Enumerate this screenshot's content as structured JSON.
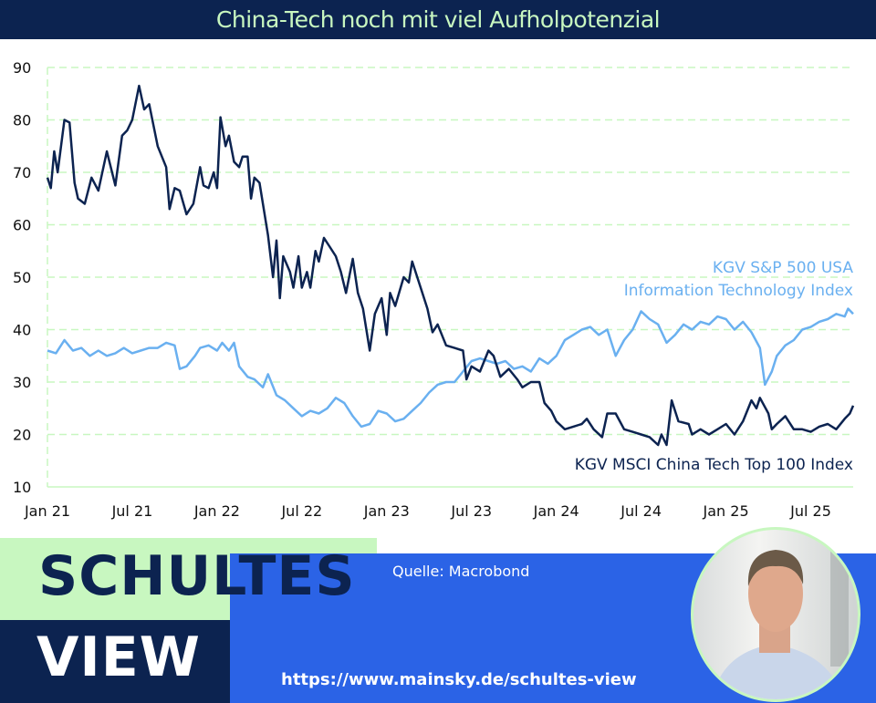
{
  "title": "China-Tech noch mit viel Aufholpotenzial",
  "footer": {
    "brand_line1": "SCHULTES",
    "brand_line2": "VIEW",
    "source": "Quelle: Macrobond",
    "url": "https://www.mainsky.de/schultes-view"
  },
  "colors": {
    "navy": "#0c2350",
    "light_blue": "#6ab0f0",
    "green": "#c8f7c0",
    "blue": "#2b63e6"
  },
  "chart_data": {
    "type": "line",
    "title": "China-Tech noch mit viel Aufholpotenzial",
    "xlabel": "",
    "ylabel": "",
    "ylim": [
      10,
      90
    ],
    "xlim": [
      2021.0,
      2025.75
    ],
    "yticks": [
      10,
      20,
      30,
      40,
      50,
      60,
      70,
      80,
      90
    ],
    "xticks": [
      {
        "x": 2021.0,
        "label": "Jan 21"
      },
      {
        "x": 2021.5,
        "label": "Jul 21"
      },
      {
        "x": 2022.0,
        "label": "Jan 22"
      },
      {
        "x": 2022.5,
        "label": "Jul 22"
      },
      {
        "x": 2023.0,
        "label": "Jan 23"
      },
      {
        "x": 2023.5,
        "label": "Jul 23"
      },
      {
        "x": 2024.0,
        "label": "Jan 24"
      },
      {
        "x": 2024.5,
        "label": "Jul 24"
      },
      {
        "x": 2025.0,
        "label": "Jan 25"
      },
      {
        "x": 2025.5,
        "label": "Jul 25"
      }
    ],
    "grid": true,
    "series": [
      {
        "name": "KGV S&P 500 USA Information Technology Index",
        "label_lines": [
          "KGV S&P 500 USA",
          "Information Technology Index"
        ],
        "color": "#6ab0f0",
        "points": [
          [
            2021.0,
            36
          ],
          [
            2021.05,
            35.5
          ],
          [
            2021.1,
            38
          ],
          [
            2021.15,
            36
          ],
          [
            2021.2,
            36.5
          ],
          [
            2021.25,
            35
          ],
          [
            2021.3,
            36
          ],
          [
            2021.35,
            35
          ],
          [
            2021.4,
            35.5
          ],
          [
            2021.45,
            36.5
          ],
          [
            2021.5,
            35.5
          ],
          [
            2021.55,
            36
          ],
          [
            2021.6,
            36.5
          ],
          [
            2021.65,
            36.5
          ],
          [
            2021.7,
            37.5
          ],
          [
            2021.75,
            37
          ],
          [
            2021.78,
            32.5
          ],
          [
            2021.82,
            33
          ],
          [
            2021.87,
            35
          ],
          [
            2021.9,
            36.5
          ],
          [
            2021.95,
            37
          ],
          [
            2022.0,
            36
          ],
          [
            2022.03,
            37.5
          ],
          [
            2022.07,
            36
          ],
          [
            2022.1,
            37.5
          ],
          [
            2022.13,
            33
          ],
          [
            2022.18,
            31
          ],
          [
            2022.22,
            30.5
          ],
          [
            2022.27,
            29
          ],
          [
            2022.3,
            31.5
          ],
          [
            2022.35,
            27.5
          ],
          [
            2022.4,
            26.5
          ],
          [
            2022.45,
            25
          ],
          [
            2022.5,
            23.5
          ],
          [
            2022.55,
            24.5
          ],
          [
            2022.6,
            24
          ],
          [
            2022.65,
            25
          ],
          [
            2022.7,
            27
          ],
          [
            2022.75,
            26
          ],
          [
            2022.8,
            23.5
          ],
          [
            2022.85,
            21.5
          ],
          [
            2022.9,
            22
          ],
          [
            2022.95,
            24.5
          ],
          [
            2023.0,
            24
          ],
          [
            2023.05,
            22.5
          ],
          [
            2023.1,
            23
          ],
          [
            2023.15,
            24.5
          ],
          [
            2023.2,
            26
          ],
          [
            2023.25,
            28
          ],
          [
            2023.3,
            29.5
          ],
          [
            2023.35,
            30
          ],
          [
            2023.4,
            30
          ],
          [
            2023.45,
            32
          ],
          [
            2023.5,
            34
          ],
          [
            2023.55,
            34.5
          ],
          [
            2023.6,
            34
          ],
          [
            2023.65,
            33.5
          ],
          [
            2023.7,
            34
          ],
          [
            2023.75,
            32.5
          ],
          [
            2023.8,
            33
          ],
          [
            2023.85,
            32
          ],
          [
            2023.9,
            34.5
          ],
          [
            2023.95,
            33.5
          ],
          [
            2024.0,
            35
          ],
          [
            2024.05,
            38
          ],
          [
            2024.1,
            39
          ],
          [
            2024.15,
            40
          ],
          [
            2024.2,
            40.5
          ],
          [
            2024.25,
            39
          ],
          [
            2024.3,
            40
          ],
          [
            2024.35,
            35
          ],
          [
            2024.4,
            38
          ],
          [
            2024.45,
            40
          ],
          [
            2024.5,
            43.5
          ],
          [
            2024.55,
            42
          ],
          [
            2024.6,
            41
          ],
          [
            2024.65,
            37.5
          ],
          [
            2024.7,
            39
          ],
          [
            2024.75,
            41
          ],
          [
            2024.8,
            40
          ],
          [
            2024.85,
            41.5
          ],
          [
            2024.9,
            41
          ],
          [
            2024.95,
            42.5
          ],
          [
            2025.0,
            42
          ],
          [
            2025.05,
            40
          ],
          [
            2025.1,
            41.5
          ],
          [
            2025.15,
            39.5
          ],
          [
            2025.2,
            36.5
          ],
          [
            2025.23,
            29.5
          ],
          [
            2025.27,
            32
          ],
          [
            2025.3,
            35
          ],
          [
            2025.35,
            37
          ],
          [
            2025.4,
            38
          ],
          [
            2025.45,
            40
          ],
          [
            2025.5,
            40.5
          ],
          [
            2025.55,
            41.5
          ],
          [
            2025.6,
            42
          ],
          [
            2025.65,
            43
          ],
          [
            2025.7,
            42.5
          ],
          [
            2025.72,
            44
          ],
          [
            2025.75,
            43
          ]
        ]
      },
      {
        "name": "KGV MSCI China Tech Top 100 Index",
        "label_lines": [
          "KGV MSCI China Tech Top 100 Index"
        ],
        "color": "#0c2350",
        "points": [
          [
            2021.0,
            69
          ],
          [
            2021.02,
            67
          ],
          [
            2021.04,
            74
          ],
          [
            2021.06,
            70
          ],
          [
            2021.1,
            80
          ],
          [
            2021.13,
            79.5
          ],
          [
            2021.16,
            68
          ],
          [
            2021.18,
            65
          ],
          [
            2021.22,
            64
          ],
          [
            2021.26,
            69
          ],
          [
            2021.3,
            66.5
          ],
          [
            2021.35,
            74
          ],
          [
            2021.4,
            67.5
          ],
          [
            2021.44,
            77
          ],
          [
            2021.47,
            78
          ],
          [
            2021.5,
            80
          ],
          [
            2021.54,
            86.5
          ],
          [
            2021.57,
            82
          ],
          [
            2021.6,
            83
          ],
          [
            2021.65,
            75
          ],
          [
            2021.7,
            71
          ],
          [
            2021.72,
            63
          ],
          [
            2021.75,
            67
          ],
          [
            2021.78,
            66.5
          ],
          [
            2021.82,
            62
          ],
          [
            2021.86,
            64
          ],
          [
            2021.9,
            71
          ],
          [
            2021.92,
            67.5
          ],
          [
            2021.95,
            67
          ],
          [
            2021.98,
            70
          ],
          [
            2022.0,
            67
          ],
          [
            2022.02,
            80.5
          ],
          [
            2022.05,
            75
          ],
          [
            2022.07,
            77
          ],
          [
            2022.1,
            72
          ],
          [
            2022.13,
            71
          ],
          [
            2022.15,
            73
          ],
          [
            2022.18,
            73
          ],
          [
            2022.2,
            65
          ],
          [
            2022.22,
            69
          ],
          [
            2022.25,
            68
          ],
          [
            2022.3,
            58
          ],
          [
            2022.33,
            50
          ],
          [
            2022.35,
            57
          ],
          [
            2022.37,
            46
          ],
          [
            2022.39,
            54
          ],
          [
            2022.43,
            51
          ],
          [
            2022.45,
            48
          ],
          [
            2022.48,
            54
          ],
          [
            2022.5,
            48
          ],
          [
            2022.53,
            51
          ],
          [
            2022.55,
            48
          ],
          [
            2022.58,
            55
          ],
          [
            2022.6,
            53
          ],
          [
            2022.63,
            57.5
          ],
          [
            2022.66,
            56
          ],
          [
            2022.7,
            54
          ],
          [
            2022.73,
            51
          ],
          [
            2022.76,
            47
          ],
          [
            2022.8,
            53.5
          ],
          [
            2022.83,
            47
          ],
          [
            2022.86,
            44
          ],
          [
            2022.9,
            36
          ],
          [
            2022.93,
            43
          ],
          [
            2022.97,
            46
          ],
          [
            2023.0,
            39
          ],
          [
            2023.02,
            47
          ],
          [
            2023.05,
            44.5
          ],
          [
            2023.1,
            50
          ],
          [
            2023.13,
            49
          ],
          [
            2023.15,
            53
          ],
          [
            2023.2,
            48
          ],
          [
            2023.24,
            44
          ],
          [
            2023.27,
            39.5
          ],
          [
            2023.3,
            41
          ],
          [
            2023.35,
            37
          ],
          [
            2023.4,
            36.5
          ],
          [
            2023.45,
            36
          ],
          [
            2023.47,
            30.5
          ],
          [
            2023.5,
            33
          ],
          [
            2023.55,
            32
          ],
          [
            2023.6,
            36
          ],
          [
            2023.63,
            35
          ],
          [
            2023.67,
            31
          ],
          [
            2023.72,
            32.5
          ],
          [
            2023.77,
            30.5
          ],
          [
            2023.8,
            29
          ],
          [
            2023.85,
            30
          ],
          [
            2023.9,
            30
          ],
          [
            2023.93,
            26
          ],
          [
            2023.97,
            24.5
          ],
          [
            2024.0,
            22.5
          ],
          [
            2024.05,
            21
          ],
          [
            2024.1,
            21.5
          ],
          [
            2024.15,
            22
          ],
          [
            2024.18,
            23
          ],
          [
            2024.22,
            21
          ],
          [
            2024.27,
            19.5
          ],
          [
            2024.3,
            24
          ],
          [
            2024.35,
            24
          ],
          [
            2024.4,
            21
          ],
          [
            2024.45,
            20.5
          ],
          [
            2024.5,
            20
          ],
          [
            2024.55,
            19.5
          ],
          [
            2024.6,
            18
          ],
          [
            2024.62,
            20
          ],
          [
            2024.65,
            18
          ],
          [
            2024.68,
            26.5
          ],
          [
            2024.72,
            22.5
          ],
          [
            2024.78,
            22
          ],
          [
            2024.8,
            20
          ],
          [
            2024.85,
            21
          ],
          [
            2024.9,
            20
          ],
          [
            2024.95,
            21
          ],
          [
            2025.0,
            22
          ],
          [
            2025.05,
            20
          ],
          [
            2025.1,
            22.5
          ],
          [
            2025.15,
            26.5
          ],
          [
            2025.18,
            25
          ],
          [
            2025.2,
            27
          ],
          [
            2025.25,
            24
          ],
          [
            2025.27,
            21
          ],
          [
            2025.3,
            22
          ],
          [
            2025.35,
            23.5
          ],
          [
            2025.4,
            21
          ],
          [
            2025.45,
            21
          ],
          [
            2025.5,
            20.5
          ],
          [
            2025.55,
            21.5
          ],
          [
            2025.6,
            22
          ],
          [
            2025.65,
            21
          ],
          [
            2025.7,
            23
          ],
          [
            2025.73,
            24
          ],
          [
            2025.75,
            25.5
          ]
        ]
      }
    ]
  }
}
